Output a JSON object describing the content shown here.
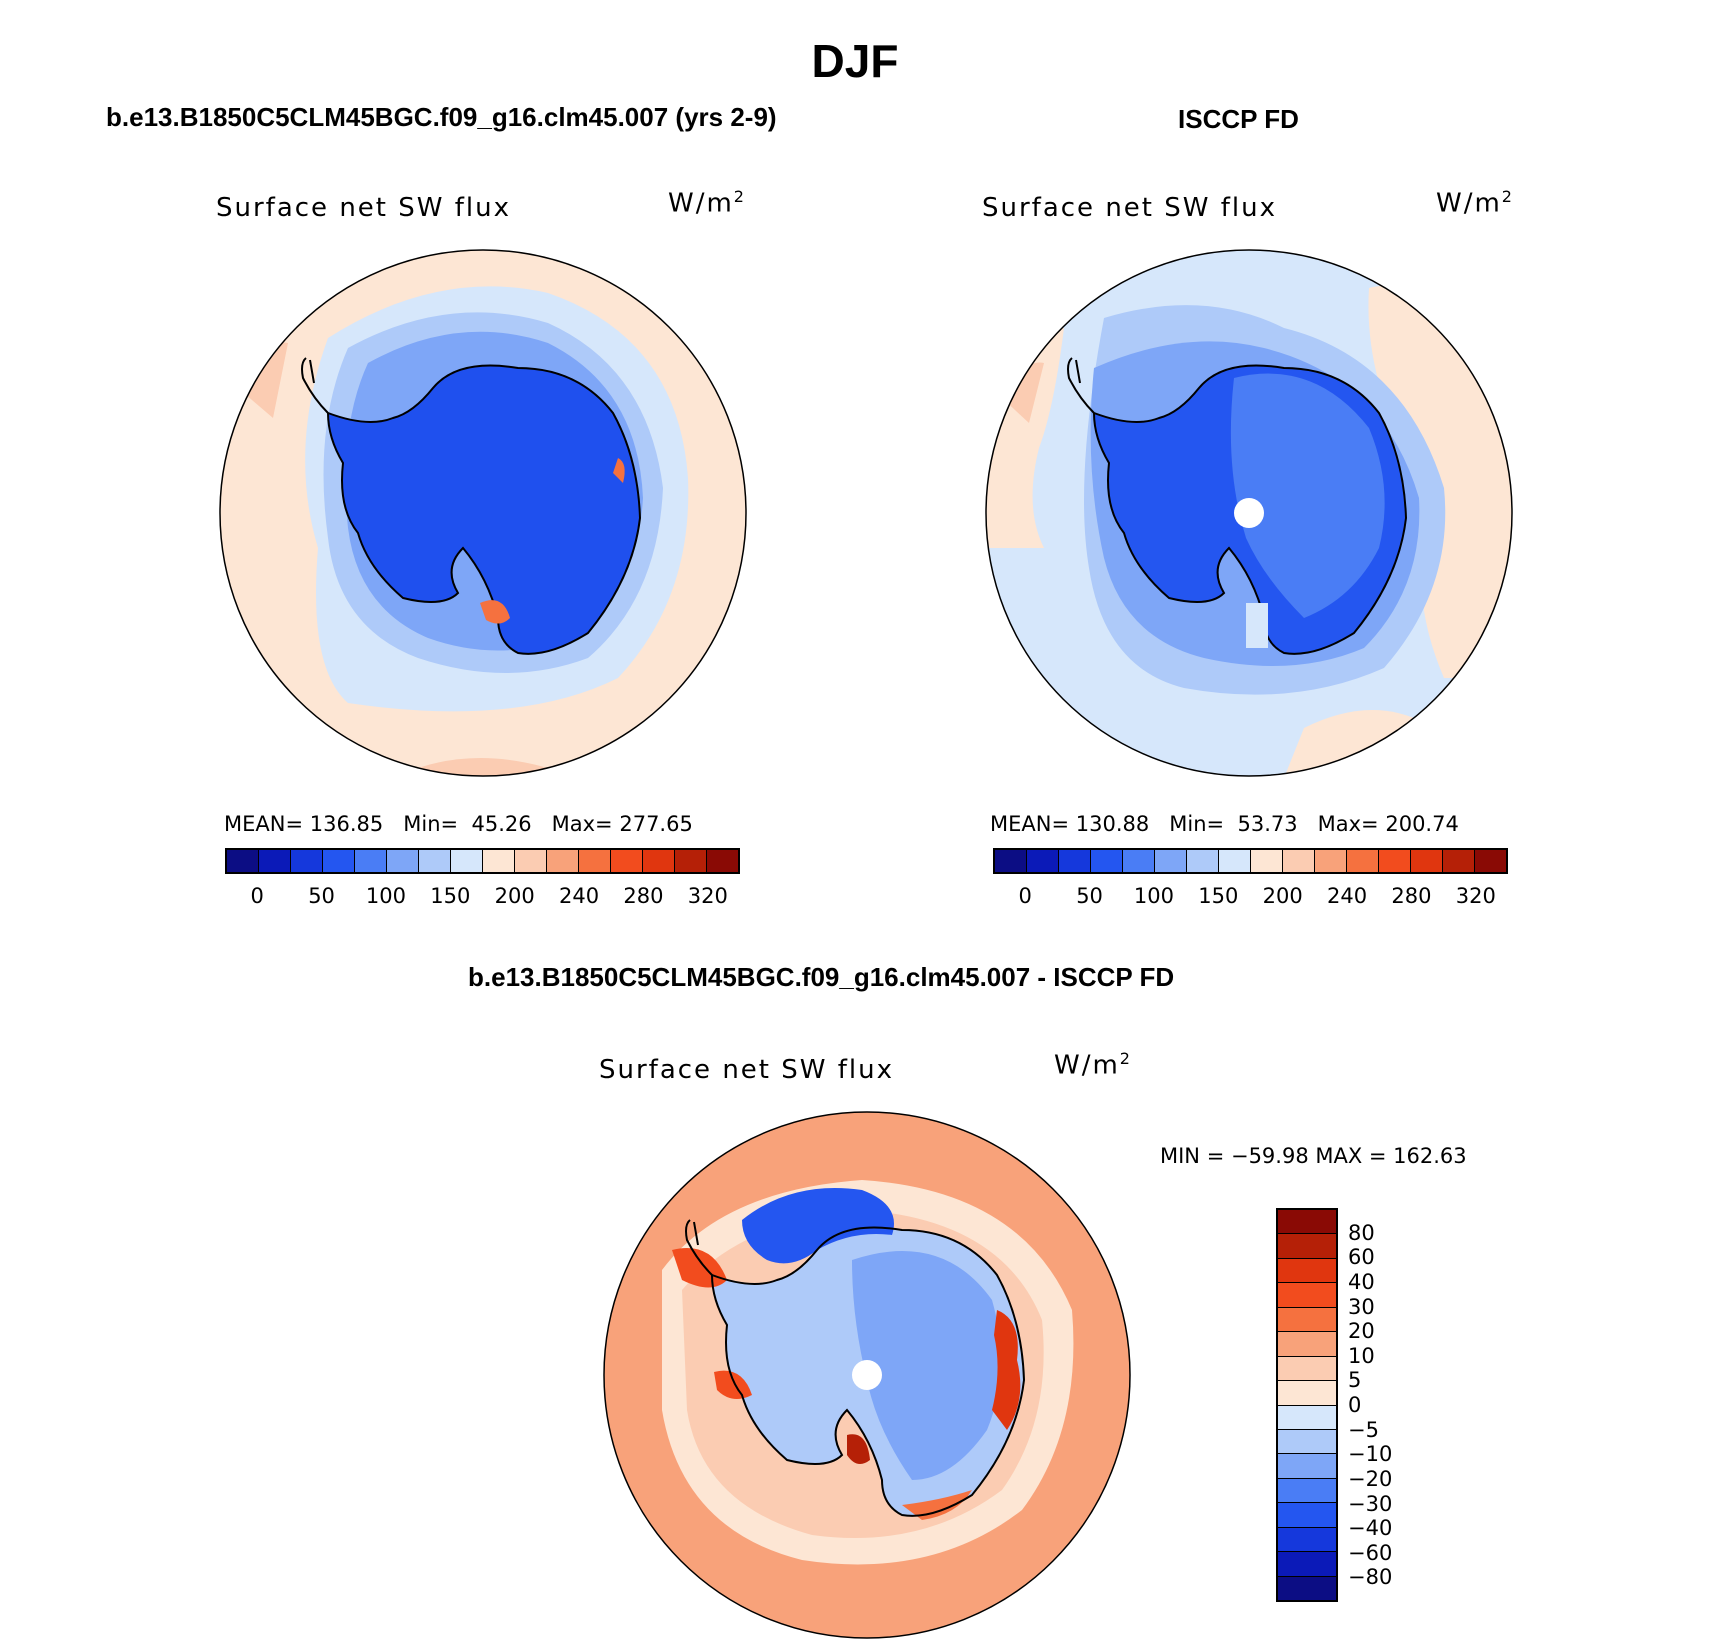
{
  "figure": {
    "title": "DJF",
    "variable_label": "Surface net SW flux",
    "units": "W/m",
    "units_exp": "2"
  },
  "chart_data": [
    {
      "type": "heatmap",
      "panel": "model",
      "title": "b.e13.B1850C5CLM45BGC.f09_g16.clm45.007 (yrs 2-9)",
      "label": "Surface net SW flux",
      "units": "W/m2",
      "mean_text": "136.85",
      "min_text": "45.26",
      "max_text": "277.65",
      "levels": [
        0,
        25,
        50,
        75,
        100,
        125,
        150,
        175,
        200,
        220,
        240,
        260,
        280,
        300,
        320
      ],
      "tick_labels": [
        "0",
        "50",
        "100",
        "150",
        "200",
        "240",
        "280",
        "320"
      ],
      "colors": [
        "#0c0d84",
        "#0b1ab8",
        "#1538dc",
        "#2456f0",
        "#4a7df5",
        "#7ea6f7",
        "#aecaf9",
        "#d6e7fb",
        "#fde6d4",
        "#fbccb2",
        "#f8a27a",
        "#f5713f",
        "#f24c1e",
        "#e0360f",
        "#b52007",
        "#8a0a05"
      ]
    },
    {
      "type": "heatmap",
      "panel": "observations",
      "title": "ISCCP FD",
      "label": "Surface net SW flux",
      "units": "W/m2",
      "mean_text": "130.88",
      "min_text": "53.73",
      "max_text": "200.74",
      "levels": [
        0,
        25,
        50,
        75,
        100,
        125,
        150,
        175,
        200,
        220,
        240,
        260,
        280,
        300,
        320
      ],
      "tick_labels": [
        "0",
        "50",
        "100",
        "150",
        "200",
        "240",
        "280",
        "320"
      ],
      "colors": [
        "#0c0d84",
        "#0b1ab8",
        "#1538dc",
        "#2456f0",
        "#4a7df5",
        "#7ea6f7",
        "#aecaf9",
        "#d6e7fb",
        "#fde6d4",
        "#fbccb2",
        "#f8a27a",
        "#f5713f",
        "#f24c1e",
        "#e0360f",
        "#b52007",
        "#8a0a05"
      ]
    },
    {
      "type": "heatmap",
      "panel": "difference",
      "title": "b.e13.B1850C5CLM45BGC.f09_g16.clm45.007 - ISCCP FD",
      "label": "Surface net SW flux",
      "units": "W/m2",
      "min_max_text": "MIN = −59.98 MAX = 162.63",
      "levels": [
        -80,
        -60,
        -40,
        -30,
        -20,
        -10,
        -5,
        0,
        5,
        10,
        20,
        30,
        40,
        60,
        80
      ],
      "tick_labels": [
        "80",
        "60",
        "40",
        "30",
        "20",
        "10",
        "5",
        "0",
        "−5",
        "−10",
        "−20",
        "−30",
        "−40",
        "−60",
        "−80"
      ],
      "colors": [
        "#0c0d84",
        "#0b1ab8",
        "#1538dc",
        "#2456f0",
        "#4a7df5",
        "#7ea6f7",
        "#aecaf9",
        "#d6e7fb",
        "#fde6d4",
        "#fbccb2",
        "#f8a27a",
        "#f5713f",
        "#f24c1e",
        "#e0360f",
        "#b52007",
        "#8a0a05"
      ]
    }
  ],
  "stats_labels": {
    "mean": "MEAN=",
    "min": "Min=",
    "max": "Max="
  }
}
